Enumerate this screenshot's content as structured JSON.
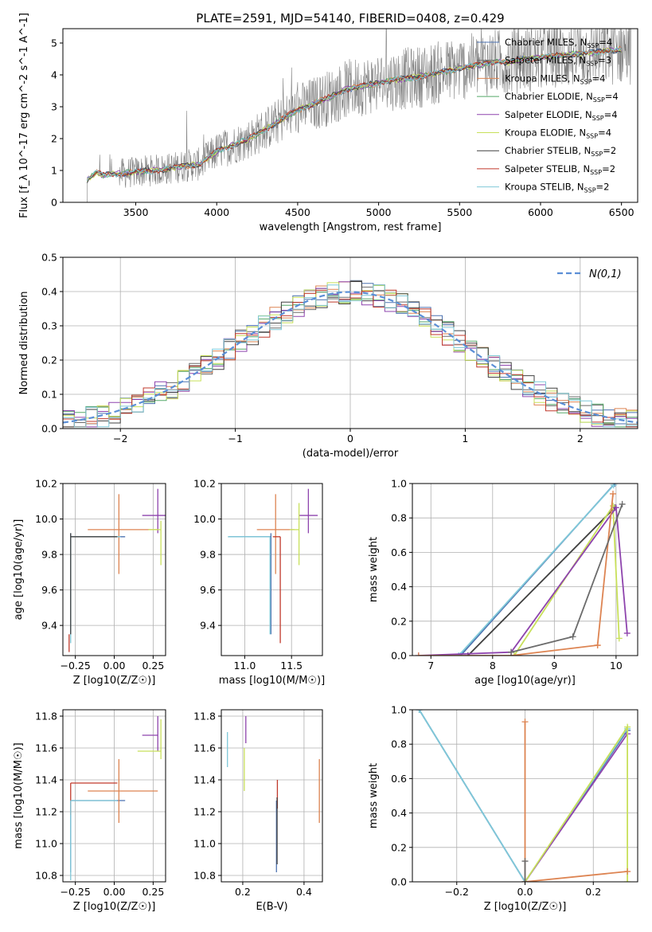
{
  "figure": {
    "title": "PLATE=2591, MJD=54140, FIBERID=0408, z=0.429"
  },
  "series": [
    {
      "name": "Chabrier MILES",
      "nssp": "4",
      "color": "#4c72b0"
    },
    {
      "name": "Salpeter MILES",
      "nssp": "3",
      "color": "#6b6b6b"
    },
    {
      "name": "Kroupa MILES",
      "nssp": "4",
      "color": "#dd8452"
    },
    {
      "name": "Chabrier ELODIE",
      "nssp": "4",
      "color": "#55a868"
    },
    {
      "name": "Salpeter ELODIE",
      "nssp": "4",
      "color": "#8e44ad"
    },
    {
      "name": "Kroupa ELODIE",
      "nssp": "4",
      "color": "#c8e05a"
    },
    {
      "name": "Chabrier STELIB",
      "nssp": "2",
      "color": "#404040"
    },
    {
      "name": "Salpeter STELIB",
      "nssp": "2",
      "color": "#c0392b"
    },
    {
      "name": "Kroupa STELIB",
      "nssp": "2",
      "color": "#7fc8d8"
    }
  ],
  "chart_data": [
    {
      "type": "line",
      "id": "spectrum",
      "title": "PLATE=2591, MJD=54140, FIBERID=0408, z=0.429",
      "xlabel": "wavelength [Angstrom, rest frame]",
      "ylabel": "Flux [f_λ 10^-17 erg cm^-2 s^-1 A^-1]",
      "xlim": [
        3050,
        6600
      ],
      "ylim": [
        0,
        5.45
      ],
      "xticks": [
        3500,
        4000,
        4500,
        5000,
        5500,
        6000,
        6500
      ],
      "yticks": [
        0,
        1,
        2,
        3,
        4,
        5
      ],
      "data_color": "#808080",
      "data_start": 3200,
      "model_points": {
        "x": [
          3200,
          3260,
          3300,
          3400,
          3500,
          3600,
          3700,
          3800,
          3900,
          4000,
          4100,
          4200,
          4300,
          4400,
          4500,
          4600,
          4700,
          4800,
          4900,
          5000,
          5100,
          5200,
          5300,
          5400,
          5500,
          5600,
          5700,
          5800,
          5900,
          6000,
          6100,
          6200,
          6300,
          6400,
          6500
        ],
        "y": [
          0.7,
          0.95,
          0.85,
          0.9,
          0.95,
          1.0,
          1.05,
          1.15,
          1.2,
          1.6,
          1.8,
          2.0,
          2.3,
          2.6,
          2.9,
          3.1,
          3.3,
          3.55,
          3.65,
          3.75,
          3.85,
          3.9,
          4.0,
          4.1,
          4.2,
          4.3,
          4.4,
          4.4,
          4.5,
          4.55,
          4.6,
          4.65,
          4.7,
          4.75,
          4.8
        ]
      },
      "grid": false,
      "legend": "upper-right"
    },
    {
      "type": "step-histogram",
      "id": "residuals",
      "xlabel": "(data-model)/error",
      "ylabel": "Normed distribution",
      "xlim": [
        -2.5,
        2.5
      ],
      "ylim": [
        0,
        0.5
      ],
      "xticks": [
        -2,
        -1,
        0,
        1,
        2
      ],
      "yticks": [
        0.0,
        0.1,
        0.2,
        0.3,
        0.4,
        0.5
      ],
      "bin_width": 0.1,
      "reference_label": "N(0,1)",
      "reference_color": "#5b8fd6",
      "grid": true,
      "legend": "upper-right"
    },
    {
      "type": "errorbar",
      "id": "age-vs-Z",
      "xlabel": "Z [log10(Z/Z☉)]",
      "ylabel": "age [log10(age/yr)]",
      "xlim": [
        -0.33,
        0.33
      ],
      "ylim": [
        9.23,
        10.2
      ],
      "xticks": [
        -0.25,
        0.0,
        0.25
      ],
      "yticks": [
        9.4,
        9.6,
        9.8,
        10.0,
        10.2
      ],
      "points": [
        {
          "series": 0,
          "x": -0.28,
          "y": 9.9,
          "xerr": [
            0.0,
            0.35
          ],
          "yerr": [
            0.55,
            0.02
          ]
        },
        {
          "series": 2,
          "x": 0.03,
          "y": 9.94,
          "xerr": [
            0.2,
            0.25
          ],
          "yerr": [
            0.25,
            0.2
          ]
        },
        {
          "series": 4,
          "x": 0.28,
          "y": 10.02,
          "xerr": [
            0.1,
            0.05
          ],
          "yerr": [
            0.1,
            0.15
          ]
        },
        {
          "series": 5,
          "x": 0.3,
          "y": 9.94,
          "xerr": [
            0.08,
            0.0
          ],
          "yerr": [
            0.2,
            0.05
          ]
        },
        {
          "series": 8,
          "x": -0.28,
          "y": 9.9,
          "xerr": [
            0.0,
            0.32
          ],
          "yerr": [
            0.6,
            0.0
          ]
        },
        {
          "series": 7,
          "x": -0.29,
          "y": 9.3,
          "xerr": [
            0.0,
            0.0
          ],
          "yerr": [
            0.05,
            0.05
          ]
        },
        {
          "series": 6,
          "x": -0.28,
          "y": 9.9,
          "xerr": [
            0.0,
            0.3
          ],
          "yerr": [
            0.55,
            0.02
          ]
        }
      ]
    },
    {
      "type": "errorbar",
      "id": "age-vs-mass",
      "xlabel": "mass [log10(M/M☉)]",
      "ylabel": "",
      "xlim": [
        10.75,
        11.83
      ],
      "ylim": [
        9.23,
        10.2
      ],
      "xticks": [
        11.0,
        11.5
      ],
      "yticks": [
        9.4,
        9.6,
        9.8,
        10.0,
        10.2
      ],
      "points": [
        {
          "series": 0,
          "x": 11.28,
          "y": 9.9,
          "xerr": [
            0.45,
            0.0
          ],
          "yerr": [
            0.55,
            0.02
          ]
        },
        {
          "series": 2,
          "x": 11.33,
          "y": 9.94,
          "xerr": [
            0.2,
            0.2
          ],
          "yerr": [
            0.25,
            0.2
          ]
        },
        {
          "series": 4,
          "x": 11.68,
          "y": 10.02,
          "xerr": [
            0.1,
            0.1
          ],
          "yerr": [
            0.1,
            0.15
          ]
        },
        {
          "series": 5,
          "x": 11.58,
          "y": 9.94,
          "xerr": [
            0.1,
            0.0
          ],
          "yerr": [
            0.2,
            0.15
          ]
        },
        {
          "series": 7,
          "x": 11.38,
          "y": 9.9,
          "xerr": [
            0.08,
            0.0
          ],
          "yerr": [
            0.6,
            0.0
          ]
        },
        {
          "series": 8,
          "x": 11.27,
          "y": 9.9,
          "xerr": [
            0.45,
            0.0
          ],
          "yerr": [
            0.55,
            0.0
          ]
        }
      ]
    },
    {
      "type": "line",
      "id": "massweight-vs-age",
      "xlabel": "age [log10(age/yr)]",
      "ylabel": "mass weight",
      "xlim": [
        6.7,
        10.35
      ],
      "ylim": [
        0,
        1.0
      ],
      "xticks": [
        7,
        8,
        9,
        10
      ],
      "yticks": [
        0.0,
        0.2,
        0.4,
        0.6,
        0.8,
        1.0
      ],
      "grid": true
    },
    {
      "type": "errorbar",
      "id": "mass-vs-Z",
      "xlabel": "Z [log10(Z/Z☉)]",
      "ylabel": "mass [log10(M/M☉)]",
      "xlim": [
        -0.33,
        0.33
      ],
      "ylim": [
        10.76,
        11.84
      ],
      "xticks": [
        -0.25,
        0.0,
        0.25
      ],
      "yticks": [
        10.8,
        11.0,
        11.2,
        11.4,
        11.6,
        11.8
      ],
      "points": [
        {
          "series": 0,
          "x": -0.28,
          "y": 11.27,
          "xerr": [
            0.0,
            0.35
          ],
          "yerr": [
            0.45,
            0.0
          ]
        },
        {
          "series": 2,
          "x": 0.03,
          "y": 11.33,
          "xerr": [
            0.2,
            0.25
          ],
          "yerr": [
            0.2,
            0.2
          ]
        },
        {
          "series": 4,
          "x": 0.28,
          "y": 11.68,
          "xerr": [
            0.1,
            0.0
          ],
          "yerr": [
            0.1,
            0.12
          ]
        },
        {
          "series": 5,
          "x": 0.3,
          "y": 11.58,
          "xerr": [
            0.15,
            0.0
          ],
          "yerr": [
            0.05,
            0.2
          ]
        },
        {
          "series": 7,
          "x": -0.28,
          "y": 11.38,
          "xerr": [
            0.0,
            0.3
          ],
          "yerr": [
            0.2,
            0.0
          ]
        },
        {
          "series": 8,
          "x": -0.28,
          "y": 11.27,
          "xerr": [
            0.0,
            0.3
          ],
          "yerr": [
            0.5,
            0.0
          ]
        }
      ]
    },
    {
      "type": "errorbar",
      "id": "mass-vs-EBV",
      "xlabel": "E(B-V)",
      "ylabel": "",
      "xlim": [
        0.13,
        0.46
      ],
      "ylim": [
        10.76,
        11.84
      ],
      "xticks": [
        0.2,
        0.4
      ],
      "yticks": [
        10.8,
        11.0,
        11.2,
        11.4,
        11.6,
        11.8
      ],
      "points": [
        {
          "series": 0,
          "x": 0.31,
          "y": 11.27,
          "xerr": [
            0.0,
            0.0
          ],
          "yerr": [
            0.45,
            0.0
          ]
        },
        {
          "series": 2,
          "x": 0.45,
          "y": 11.33,
          "xerr": [
            0.0,
            0.0
          ],
          "yerr": [
            0.2,
            0.2
          ]
        },
        {
          "series": 4,
          "x": 0.21,
          "y": 11.68,
          "xerr": [
            0.0,
            0.0
          ],
          "yerr": [
            0.05,
            0.12
          ]
        },
        {
          "series": 5,
          "x": 0.205,
          "y": 11.55,
          "xerr": [
            0.0,
            0.0
          ],
          "yerr": [
            0.22,
            0.05
          ]
        },
        {
          "series": 7,
          "x": 0.313,
          "y": 11.32,
          "xerr": [
            0.0,
            0.0
          ],
          "yerr": [
            0.1,
            0.08
          ]
        },
        {
          "series": 6,
          "x": 0.312,
          "y": 11.27,
          "xerr": [
            0.0,
            0.0
          ],
          "yerr": [
            0.4,
            0.02
          ]
        },
        {
          "series": 8,
          "x": 0.15,
          "y": 11.6,
          "xerr": [
            0.0,
            0.0
          ],
          "yerr": [
            0.12,
            0.1
          ]
        }
      ]
    },
    {
      "type": "line",
      "id": "massweight-vs-Z",
      "xlabel": "Z [log10(Z/Z☉)]",
      "ylabel": "mass weight",
      "xlim": [
        -0.33,
        0.33
      ],
      "ylim": [
        0,
        1.0
      ],
      "xticks": [
        -0.2,
        0.0,
        0.2
      ],
      "yticks": [
        0.0,
        0.2,
        0.4,
        0.6,
        0.8,
        1.0
      ],
      "grid": true
    }
  ]
}
